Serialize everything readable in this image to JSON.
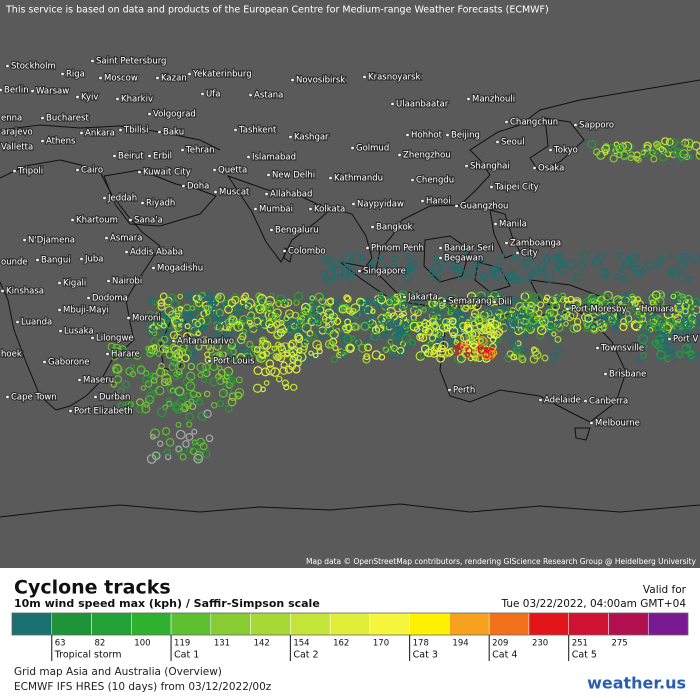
{
  "header": {
    "notice": "This service is based on data and products of the European Centre for Medium-range Weather Forecasts (ECMWF)"
  },
  "map": {
    "attribution": "Map data © OpenStreetMap contributors, rendering GIScience Research Group @ Heidelberg University",
    "cities": [
      "Stockholm",
      "Saint Petersburg",
      "Riga",
      "Moscow",
      "Kazan",
      "Yekaterinburg",
      "Novosibirsk",
      "Krasnoyarsk",
      "Berlin",
      "Warsaw",
      "Kyiv",
      "Kharkiv",
      "Ufa",
      "Astana",
      "Ulaanbaatar",
      "Manzhouli",
      "enna",
      "Bucharest",
      "Volgograd",
      "Changchun",
      "Sapporo",
      "arajevo",
      "Valletta",
      "Athens",
      "Ankara",
      "Tbilisi",
      "Baku",
      "Tashkent",
      "Kashgar",
      "Hohhot",
      "Beijing",
      "Seoul",
      "Tehran",
      "Golmud",
      "Beirut",
      "Erbil",
      "Islamabad",
      "Zhengzhou",
      "Tokyo",
      "Tripoli",
      "Cairo",
      "Kuwait City",
      "Quetta",
      "New Delhi",
      "Kathmandu",
      "Chengdu",
      "Shanghai",
      "Osaka",
      "Doha",
      "Muscat",
      "Allahabad",
      "Taipei City",
      "Jeddah",
      "Riyadh",
      "Mumbai",
      "Kolkata",
      "Naypyidaw",
      "Hanoi",
      "Guangzhou",
      "Khartoum",
      "Sana'a",
      "Bangkok",
      "Manila",
      "Bengaluru",
      "N'Djamena",
      "Asmara",
      "Addis Ababa",
      "Phnom Penh",
      "Bandar Seri",
      "Begawan",
      "Zamboanga",
      "City",
      "Colombo",
      "ounde",
      "Bangui",
      "Juba",
      "Mogadishu",
      "Singapore",
      "Kigali",
      "Nairobi",
      "Kinshasa",
      "Dodoma",
      "Jakarta",
      "Semarang",
      "Dili",
      "Port Moresby",
      "Honiara",
      "Luanda",
      "Mbuji-Mayi",
      "Moroni",
      "Lusaka",
      "Lilongwe",
      "Antananarivo",
      "Port V",
      "Harare",
      "hoek",
      "Gaborone",
      "Port Louis",
      "Townsville",
      "Maseru",
      "Brisbane",
      "Perth",
      "Cape Town",
      "Durban",
      "Adelaide",
      "Canberra",
      "Port Elizabeth",
      "Melbourne"
    ]
  },
  "legend": {
    "title": "Cyclone tracks",
    "subtitle": "10m wind speed max (kph) / Saffir-Simpson scale",
    "valid_label": "Valid for",
    "valid_time": "Tue 03/22/2022, 04:00am GMT+04",
    "colors": [
      "#1b7070",
      "#1f9338",
      "#23a036",
      "#2fb02e",
      "#5ec030",
      "#86cc32",
      "#a6d836",
      "#c4e438",
      "#e0ee3a",
      "#f6f63c",
      "#fff200",
      "#f6a21e",
      "#f2721c",
      "#e3141a",
      "#cf1232",
      "#b0104e",
      "#7a1a90"
    ],
    "ticks": [
      63,
      82,
      100,
      119,
      131,
      142,
      154,
      162,
      170,
      178,
      194,
      209,
      230,
      251,
      275
    ],
    "categories": [
      {
        "label": "Tropical storm",
        "at": 63
      },
      {
        "label": "Cat 1",
        "at": 119
      },
      {
        "label": "Cat 2",
        "at": 154
      },
      {
        "label": "Cat 3",
        "at": 178
      },
      {
        "label": "Cat 4",
        "at": 209
      },
      {
        "label": "Cat 5",
        "at": 251
      }
    ]
  },
  "footer": {
    "grid": "Grid map Asia and Australia (Overview)",
    "model": "ECMWF IFS HRES (10 days) from 03/12/2022/00z",
    "brand": "weather.us"
  }
}
